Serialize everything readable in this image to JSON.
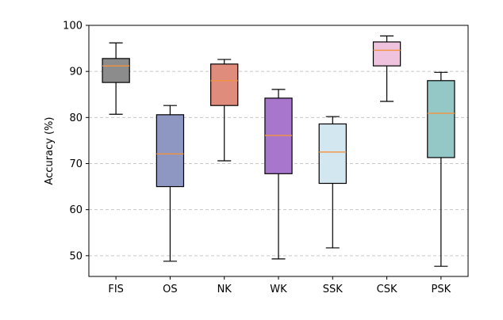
{
  "chart_data": {
    "type": "box",
    "title": "",
    "xlabel": "",
    "ylabel": "Accuracy (%)",
    "ylim": [
      45.5,
      100
    ],
    "yticks": [
      50,
      60,
      70,
      80,
      90,
      100
    ],
    "grid": "horizontal dashed",
    "categories": [
      "FIS",
      "OS",
      "NK",
      "WK",
      "SSK",
      "CSK",
      "PSK"
    ],
    "boxes": [
      {
        "label": "FIS",
        "whisker_low": 80.7,
        "q1": 87.6,
        "median": 91.2,
        "q3": 92.8,
        "whisker_high": 96.2,
        "color": "#8c8c8c"
      },
      {
        "label": "OS",
        "whisker_low": 48.8,
        "q1": 65.0,
        "median": 72.1,
        "q3": 80.6,
        "whisker_high": 82.6,
        "color": "#8e96c2"
      },
      {
        "label": "NK",
        "whisker_low": 70.6,
        "q1": 82.6,
        "median": 88.0,
        "q3": 91.6,
        "whisker_high": 92.6,
        "color": "#e08c7d"
      },
      {
        "label": "WK",
        "whisker_low": 49.3,
        "q1": 67.8,
        "median": 76.1,
        "q3": 84.2,
        "whisker_high": 86.1,
        "color": "#a876cc"
      },
      {
        "label": "SSK",
        "whisker_low": 51.7,
        "q1": 65.7,
        "median": 72.5,
        "q3": 78.6,
        "whisker_high": 80.2,
        "color": "#d2e7f0"
      },
      {
        "label": "CSK",
        "whisker_low": 83.5,
        "q1": 91.2,
        "median": 94.6,
        "q3": 96.4,
        "whisker_high": 97.7,
        "color": "#efc2de"
      },
      {
        "label": "PSK",
        "whisker_low": 47.7,
        "q1": 71.3,
        "median": 80.9,
        "q3": 88.0,
        "whisker_high": 89.8,
        "color": "#94c8c6"
      }
    ],
    "median_color": "#f5923e"
  }
}
